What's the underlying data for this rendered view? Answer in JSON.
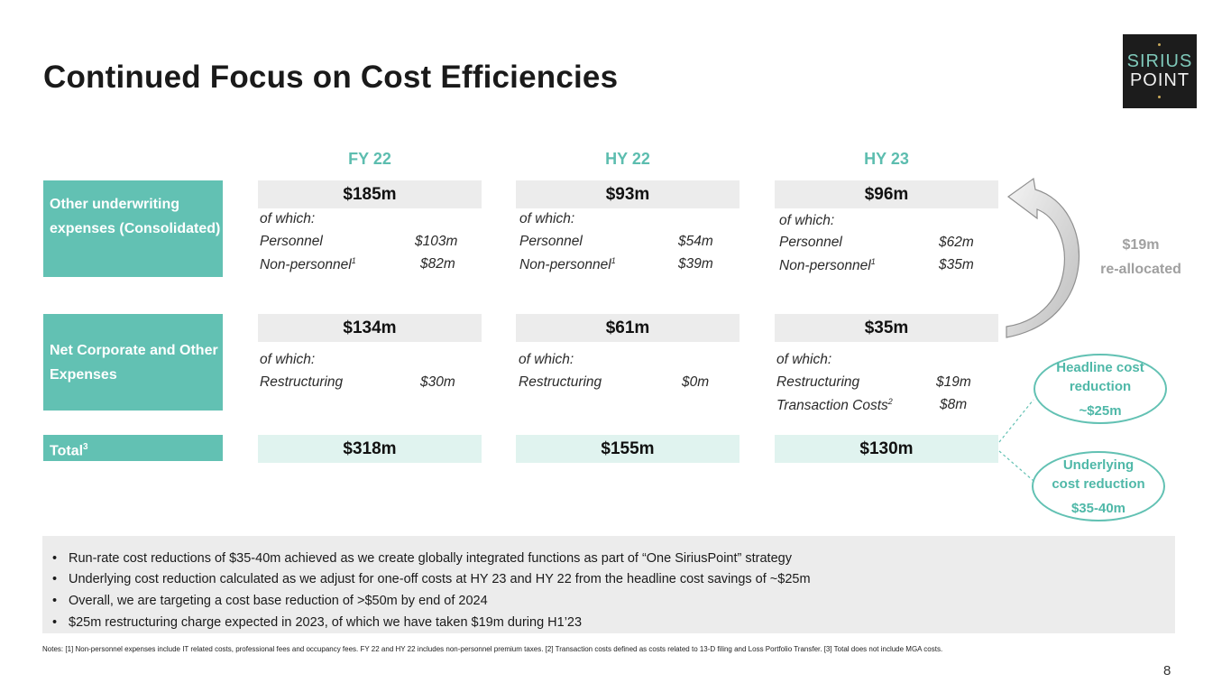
{
  "title": "Continued Focus on Cost Efficiencies",
  "logo": {
    "line1": "SIRIUS",
    "line2": "POINT"
  },
  "columns": [
    "FY 22",
    "HY 22",
    "HY 23"
  ],
  "rows": {
    "other_uw": {
      "label": "Other underwriting expenses (Consolidated)"
    },
    "net_corp": {
      "label": "Net Corporate and Other Expenses"
    },
    "total": {
      "label": "Total",
      "sup": "3"
    }
  },
  "other_uw_values": [
    {
      "total": "$185m",
      "of_which": "of which:",
      "personnel_label": "Personnel",
      "personnel": "$103m",
      "nonpers_label": "Non-personnel",
      "nonpers_sup": "1",
      "nonpers": "$82m"
    },
    {
      "total": "$93m",
      "of_which": "of which:",
      "personnel_label": "Personnel",
      "personnel": "$54m",
      "nonpers_label": "Non-personnel",
      "nonpers_sup": "1",
      "nonpers": "$39m"
    },
    {
      "total": "$96m",
      "of_which": "of which:",
      "personnel_label": "Personnel",
      "personnel": "$62m",
      "nonpers_label": "Non-personnel",
      "nonpers_sup": "1",
      "nonpers": "$35m"
    }
  ],
  "net_corp_values": [
    {
      "total": "$134m",
      "of_which": "of which:",
      "restr_label": "Restructuring",
      "restr": "$30m"
    },
    {
      "total": "$61m",
      "of_which": "of which:",
      "restr_label": "Restructuring",
      "restr": "$0m"
    },
    {
      "total": "$35m",
      "of_which": "of which:",
      "restr_label": "Restructuring",
      "restr": "$19m",
      "trans_label": "Transaction Costs",
      "trans_sup": "2",
      "trans": "$8m"
    }
  ],
  "totals": [
    "$318m",
    "$155m",
    "$130m"
  ],
  "reallocated": {
    "value": "$19m",
    "label": "re-allocated"
  },
  "headline": {
    "line1": "Headline cost",
    "line2": "reduction",
    "value": "~$25m"
  },
  "underlying": {
    "line1": "Underlying",
    "line2": "cost reduction",
    "value": "$35-40m"
  },
  "bullets": [
    "Run-rate cost reductions of $35-40m achieved as we create globally integrated functions as part of “One SiriusPoint” strategy",
    "Underlying cost reduction calculated as we adjust for one-off costs at HY 23 and HY 22 from the headline cost savings of ~$25m",
    "Overall, we are targeting a cost base reduction of >$50m by end of 2024",
    "$25m restructuring charge expected in 2023, of which we have taken $19m during H1’23"
  ],
  "bullet_char": "•",
  "footnote": "Notes: [1] Non-personnel expenses include IT related costs, professional fees and occupancy fees. FY 22 and HY 22 includes non-personnel premium taxes. [2] Transaction costs defined as costs related to 13-D filing and Loss Portfolio Transfer. [3] Total does not include MGA costs.",
  "page_number": "8",
  "colors": {
    "teal": "#62c1b3",
    "grey_box": "#ececec",
    "total_box": "#e0f3ef"
  }
}
